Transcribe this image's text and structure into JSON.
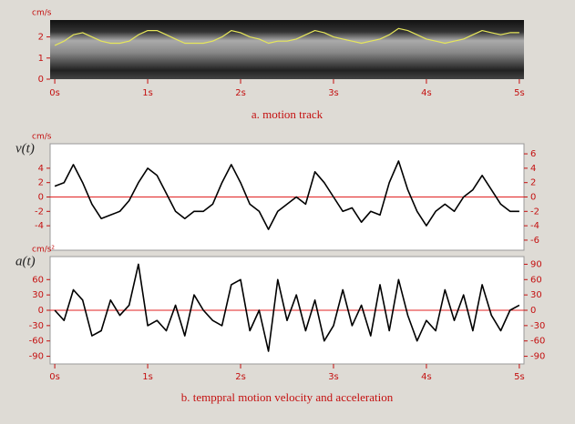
{
  "chart_data": [
    {
      "type": "line",
      "caption": "a. motion track",
      "y_unit": "cm/s",
      "x": [
        0,
        0.1,
        0.2,
        0.3,
        0.4,
        0.5,
        0.6,
        0.7,
        0.8,
        0.9,
        1,
        1.1,
        1.2,
        1.3,
        1.4,
        1.5,
        1.6,
        1.7,
        1.8,
        1.9,
        2,
        2.1,
        2.2,
        2.3,
        2.4,
        2.5,
        2.6,
        2.7,
        2.8,
        2.9,
        3,
        3.1,
        3.2,
        3.3,
        3.4,
        3.5,
        3.6,
        3.7,
        3.8,
        3.9,
        4,
        4.1,
        4.2,
        4.3,
        4.4,
        4.5,
        4.6,
        4.7,
        4.8,
        4.9,
        5
      ],
      "series": [
        {
          "color": "#e6e65a",
          "values": [
            1.6,
            1.8,
            2.1,
            2.2,
            2.0,
            1.8,
            1.7,
            1.7,
            1.8,
            2.1,
            2.3,
            2.3,
            2.1,
            1.9,
            1.7,
            1.7,
            1.7,
            1.8,
            2.0,
            2.3,
            2.2,
            2.0,
            1.9,
            1.7,
            1.8,
            1.8,
            1.9,
            2.1,
            2.3,
            2.2,
            2.0,
            1.9,
            1.8,
            1.7,
            1.8,
            1.9,
            2.1,
            2.4,
            2.3,
            2.1,
            1.9,
            1.8,
            1.7,
            1.8,
            1.9,
            2.1,
            2.3,
            2.2,
            2.1,
            2.2,
            2.2
          ]
        }
      ],
      "xlim": [
        -0.05,
        5.05
      ],
      "xticks": [
        {
          "value": 0,
          "label": "0s"
        },
        {
          "value": 1,
          "label": "1s"
        },
        {
          "value": 2,
          "label": "2s"
        },
        {
          "value": 3,
          "label": "3s"
        },
        {
          "value": 4,
          "label": "4s"
        },
        {
          "value": 5,
          "label": "5s"
        }
      ],
      "ylim": [
        0,
        2.8
      ],
      "yticks": [
        0,
        1,
        2
      ],
      "zero_line": false
    },
    {
      "type": "line",
      "y_label": "v(t)",
      "y_unit": "cm/s",
      "x": [
        0,
        0.1,
        0.2,
        0.3,
        0.4,
        0.5,
        0.6,
        0.7,
        0.8,
        0.9,
        1,
        1.1,
        1.2,
        1.3,
        1.4,
        1.5,
        1.6,
        1.7,
        1.8,
        1.9,
        2,
        2.1,
        2.2,
        2.3,
        2.4,
        2.5,
        2.6,
        2.7,
        2.8,
        2.9,
        3,
        3.1,
        3.2,
        3.3,
        3.4,
        3.5,
        3.6,
        3.7,
        3.8,
        3.9,
        4,
        4.1,
        4.2,
        4.3,
        4.4,
        4.5,
        4.6,
        4.7,
        4.8,
        4.9,
        5
      ],
      "series": [
        {
          "color": "#000000",
          "values": [
            1.5,
            2,
            4.5,
            2,
            -1,
            -3,
            -2.5,
            -2,
            -0.5,
            2,
            4,
            3,
            0.5,
            -2,
            -3,
            -2,
            -2,
            -1,
            2,
            4.5,
            2,
            -1,
            -2,
            -4.5,
            -2,
            -1,
            0,
            -1,
            3.5,
            2,
            0,
            -2,
            -1.5,
            -3.5,
            -2,
            -2.5,
            2,
            5,
            1,
            -2,
            -4,
            -2,
            -1,
            -2,
            0,
            1,
            3,
            1,
            -1,
            -2,
            -2
          ]
        }
      ],
      "xlim": [
        -0.05,
        5.05
      ],
      "ylim": [
        -7.4,
        7.4
      ],
      "yticks": [
        -4,
        -2,
        0,
        2,
        4
      ],
      "y2lim": [
        -7.4,
        7.4
      ],
      "y2ticks": [
        -6,
        -4,
        -2,
        0,
        2,
        4,
        6
      ],
      "zero_line": true
    },
    {
      "type": "line",
      "y_label": "a(t)",
      "y_unit": "cm/s²",
      "caption": "b. temppral motion velocity and acceleration",
      "x": [
        0,
        0.1,
        0.2,
        0.3,
        0.4,
        0.5,
        0.6,
        0.7,
        0.8,
        0.9,
        1,
        1.1,
        1.2,
        1.3,
        1.4,
        1.5,
        1.6,
        1.7,
        1.8,
        1.9,
        2,
        2.1,
        2.2,
        2.3,
        2.4,
        2.5,
        2.6,
        2.7,
        2.8,
        2.9,
        3,
        3.1,
        3.2,
        3.3,
        3.4,
        3.5,
        3.6,
        3.7,
        3.8,
        3.9,
        4,
        4.1,
        4.2,
        4.3,
        4.4,
        4.5,
        4.6,
        4.7,
        4.8,
        4.9,
        5
      ],
      "series": [
        {
          "color": "#000000",
          "values": [
            0,
            -20,
            40,
            20,
            -50,
            -40,
            20,
            -10,
            10,
            90,
            -30,
            -20,
            -40,
            10,
            -50,
            30,
            0,
            -20,
            -30,
            50,
            60,
            -40,
            0,
            -80,
            60,
            -20,
            30,
            -40,
            20,
            -60,
            -30,
            40,
            -30,
            10,
            -50,
            50,
            -40,
            60,
            -10,
            -60,
            -20,
            -40,
            40,
            -20,
            30,
            -40,
            50,
            -10,
            -40,
            0,
            10
          ]
        }
      ],
      "xlim": [
        -0.05,
        5.05
      ],
      "xticks": [
        {
          "value": 0,
          "label": "0s"
        },
        {
          "value": 1,
          "label": "1s"
        },
        {
          "value": 2,
          "label": "2s"
        },
        {
          "value": 3,
          "label": "3s"
        },
        {
          "value": 4,
          "label": "4s"
        },
        {
          "value": 5,
          "label": "5s"
        }
      ],
      "ylim": [
        -105,
        105
      ],
      "yticks": [
        -90,
        -60,
        -30,
        0,
        30,
        60
      ],
      "y2lim": [
        -105,
        105
      ],
      "y2ticks": [
        -90,
        -60,
        -30,
        0,
        30,
        60,
        90
      ],
      "zero_line": true
    }
  ]
}
